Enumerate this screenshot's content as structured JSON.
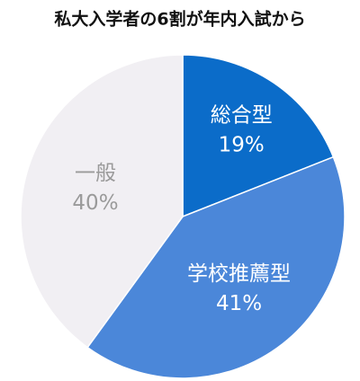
{
  "chart_data": {
    "type": "pie",
    "title": "私大入学者の6割が年内入試から",
    "categories": [
      "総合型",
      "学校推薦型",
      "一般"
    ],
    "values": [
      19,
      41,
      40
    ],
    "value_labels": [
      "19%",
      "41%",
      "40%"
    ],
    "colors": [
      "#0b6cc9",
      "#4b87d9",
      "#f1eff3"
    ],
    "label_colors": [
      "#ffffff",
      "#ffffff",
      "#9a9a9a"
    ]
  }
}
